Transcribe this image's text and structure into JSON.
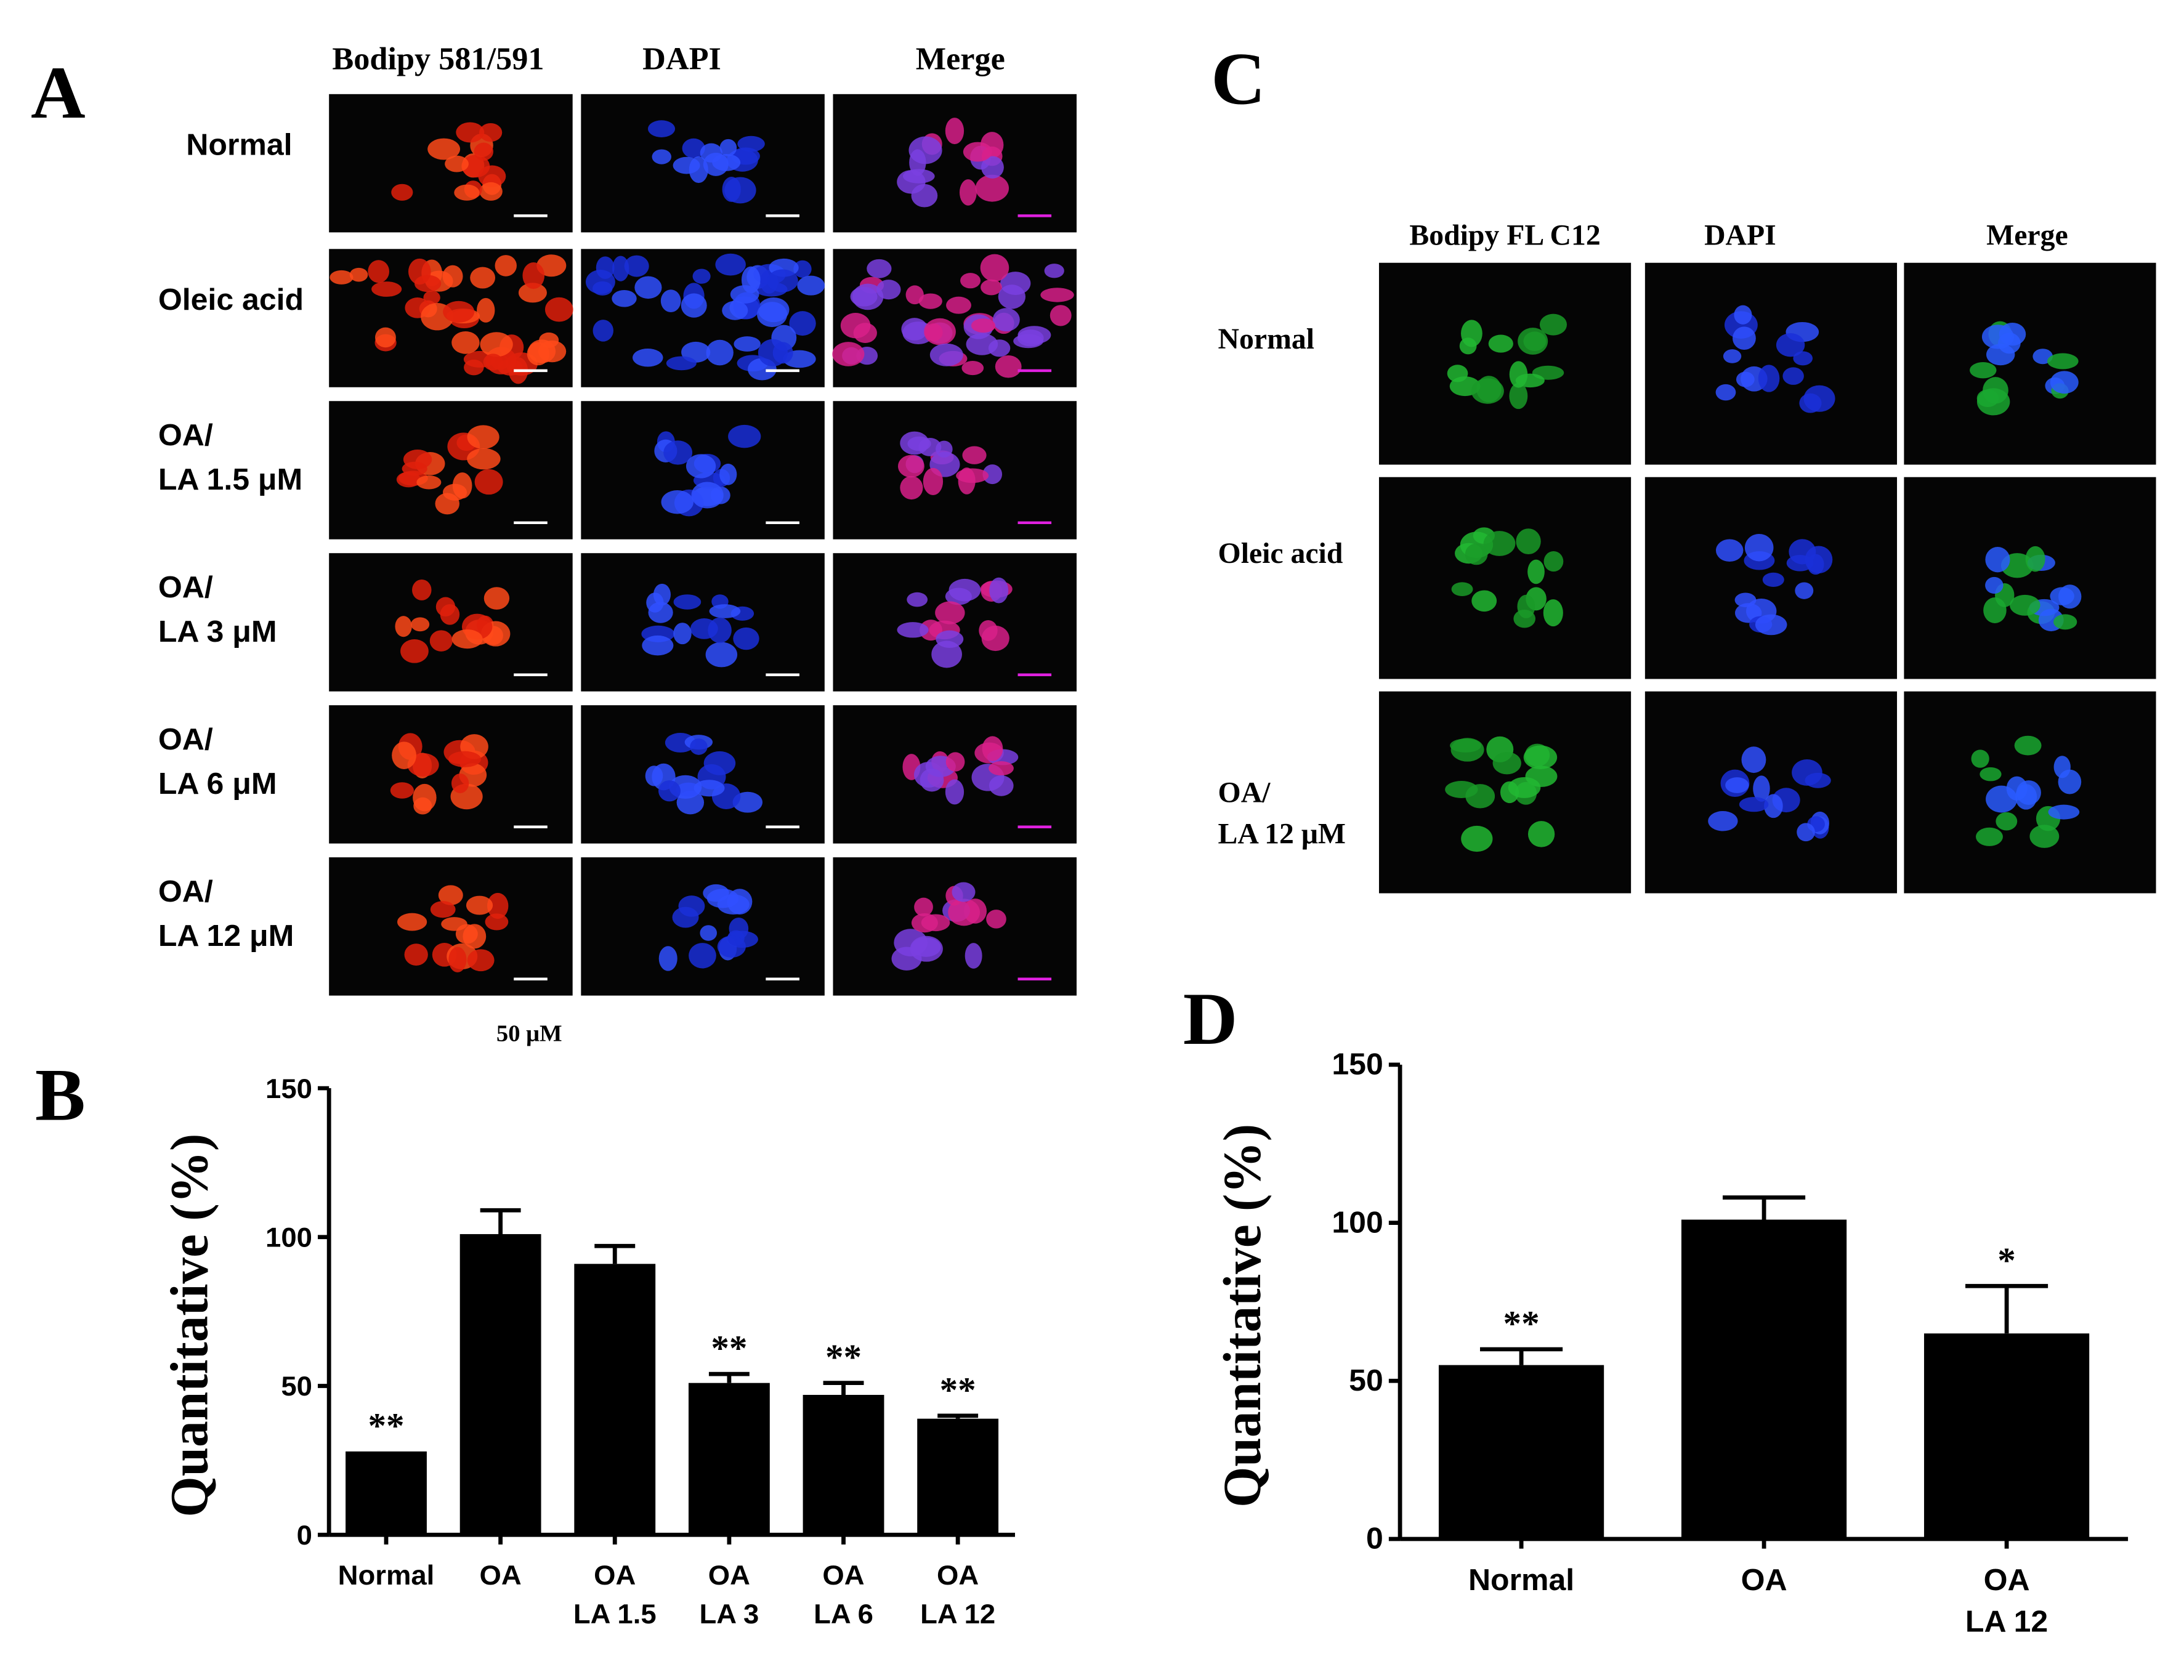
{
  "figure": {
    "panel_letters": [
      "A",
      "B",
      "C",
      "D"
    ],
    "panel_a": {
      "columns": [
        "Bodipy 581/591",
        "DAPI",
        "Merge"
      ],
      "rows": [
        "Normal",
        "Oleic acid",
        "OA/\nLA 1.5 μM",
        "OA/\nLA 3 μM",
        "OA/\nLA 6 μM",
        "OA/\nLA 12 μM"
      ],
      "scale_note": "50 μM"
    },
    "panel_c": {
      "columns": [
        "Bodipy FL C12",
        "DAPI",
        "Merge"
      ],
      "rows": [
        "Normal",
        "Oleic acid",
        "OA/\nLA 12 μM"
      ]
    }
  },
  "chart_data": [
    {
      "type": "bar",
      "y_label": "Quantitative (%)",
      "categories": [
        "Normal",
        "OA",
        "OA\nLA 1.5",
        "OA\nLA 3",
        "OA\nLA 6",
        "OA\nLA 12"
      ],
      "values": [
        28,
        101,
        91,
        51,
        47,
        39
      ],
      "errors": [
        0,
        8,
        6,
        3,
        4,
        1
      ],
      "annotations": [
        "**",
        null,
        null,
        "**",
        "**",
        "**"
      ],
      "color": "#000000",
      "ylim": [
        0,
        150
      ],
      "yticks": [
        0,
        50,
        100,
        150
      ]
    },
    {
      "type": "bar",
      "y_label": "Quantitative (%)",
      "categories": [
        "Normal",
        "OA",
        "OA\nLA 12"
      ],
      "values": [
        55,
        101,
        65
      ],
      "errors": [
        5,
        7,
        15
      ],
      "annotations": [
        "**",
        null,
        "*"
      ],
      "color": "#000000",
      "ylim": [
        0,
        150
      ],
      "yticks": [
        0,
        50,
        100,
        150
      ]
    }
  ]
}
